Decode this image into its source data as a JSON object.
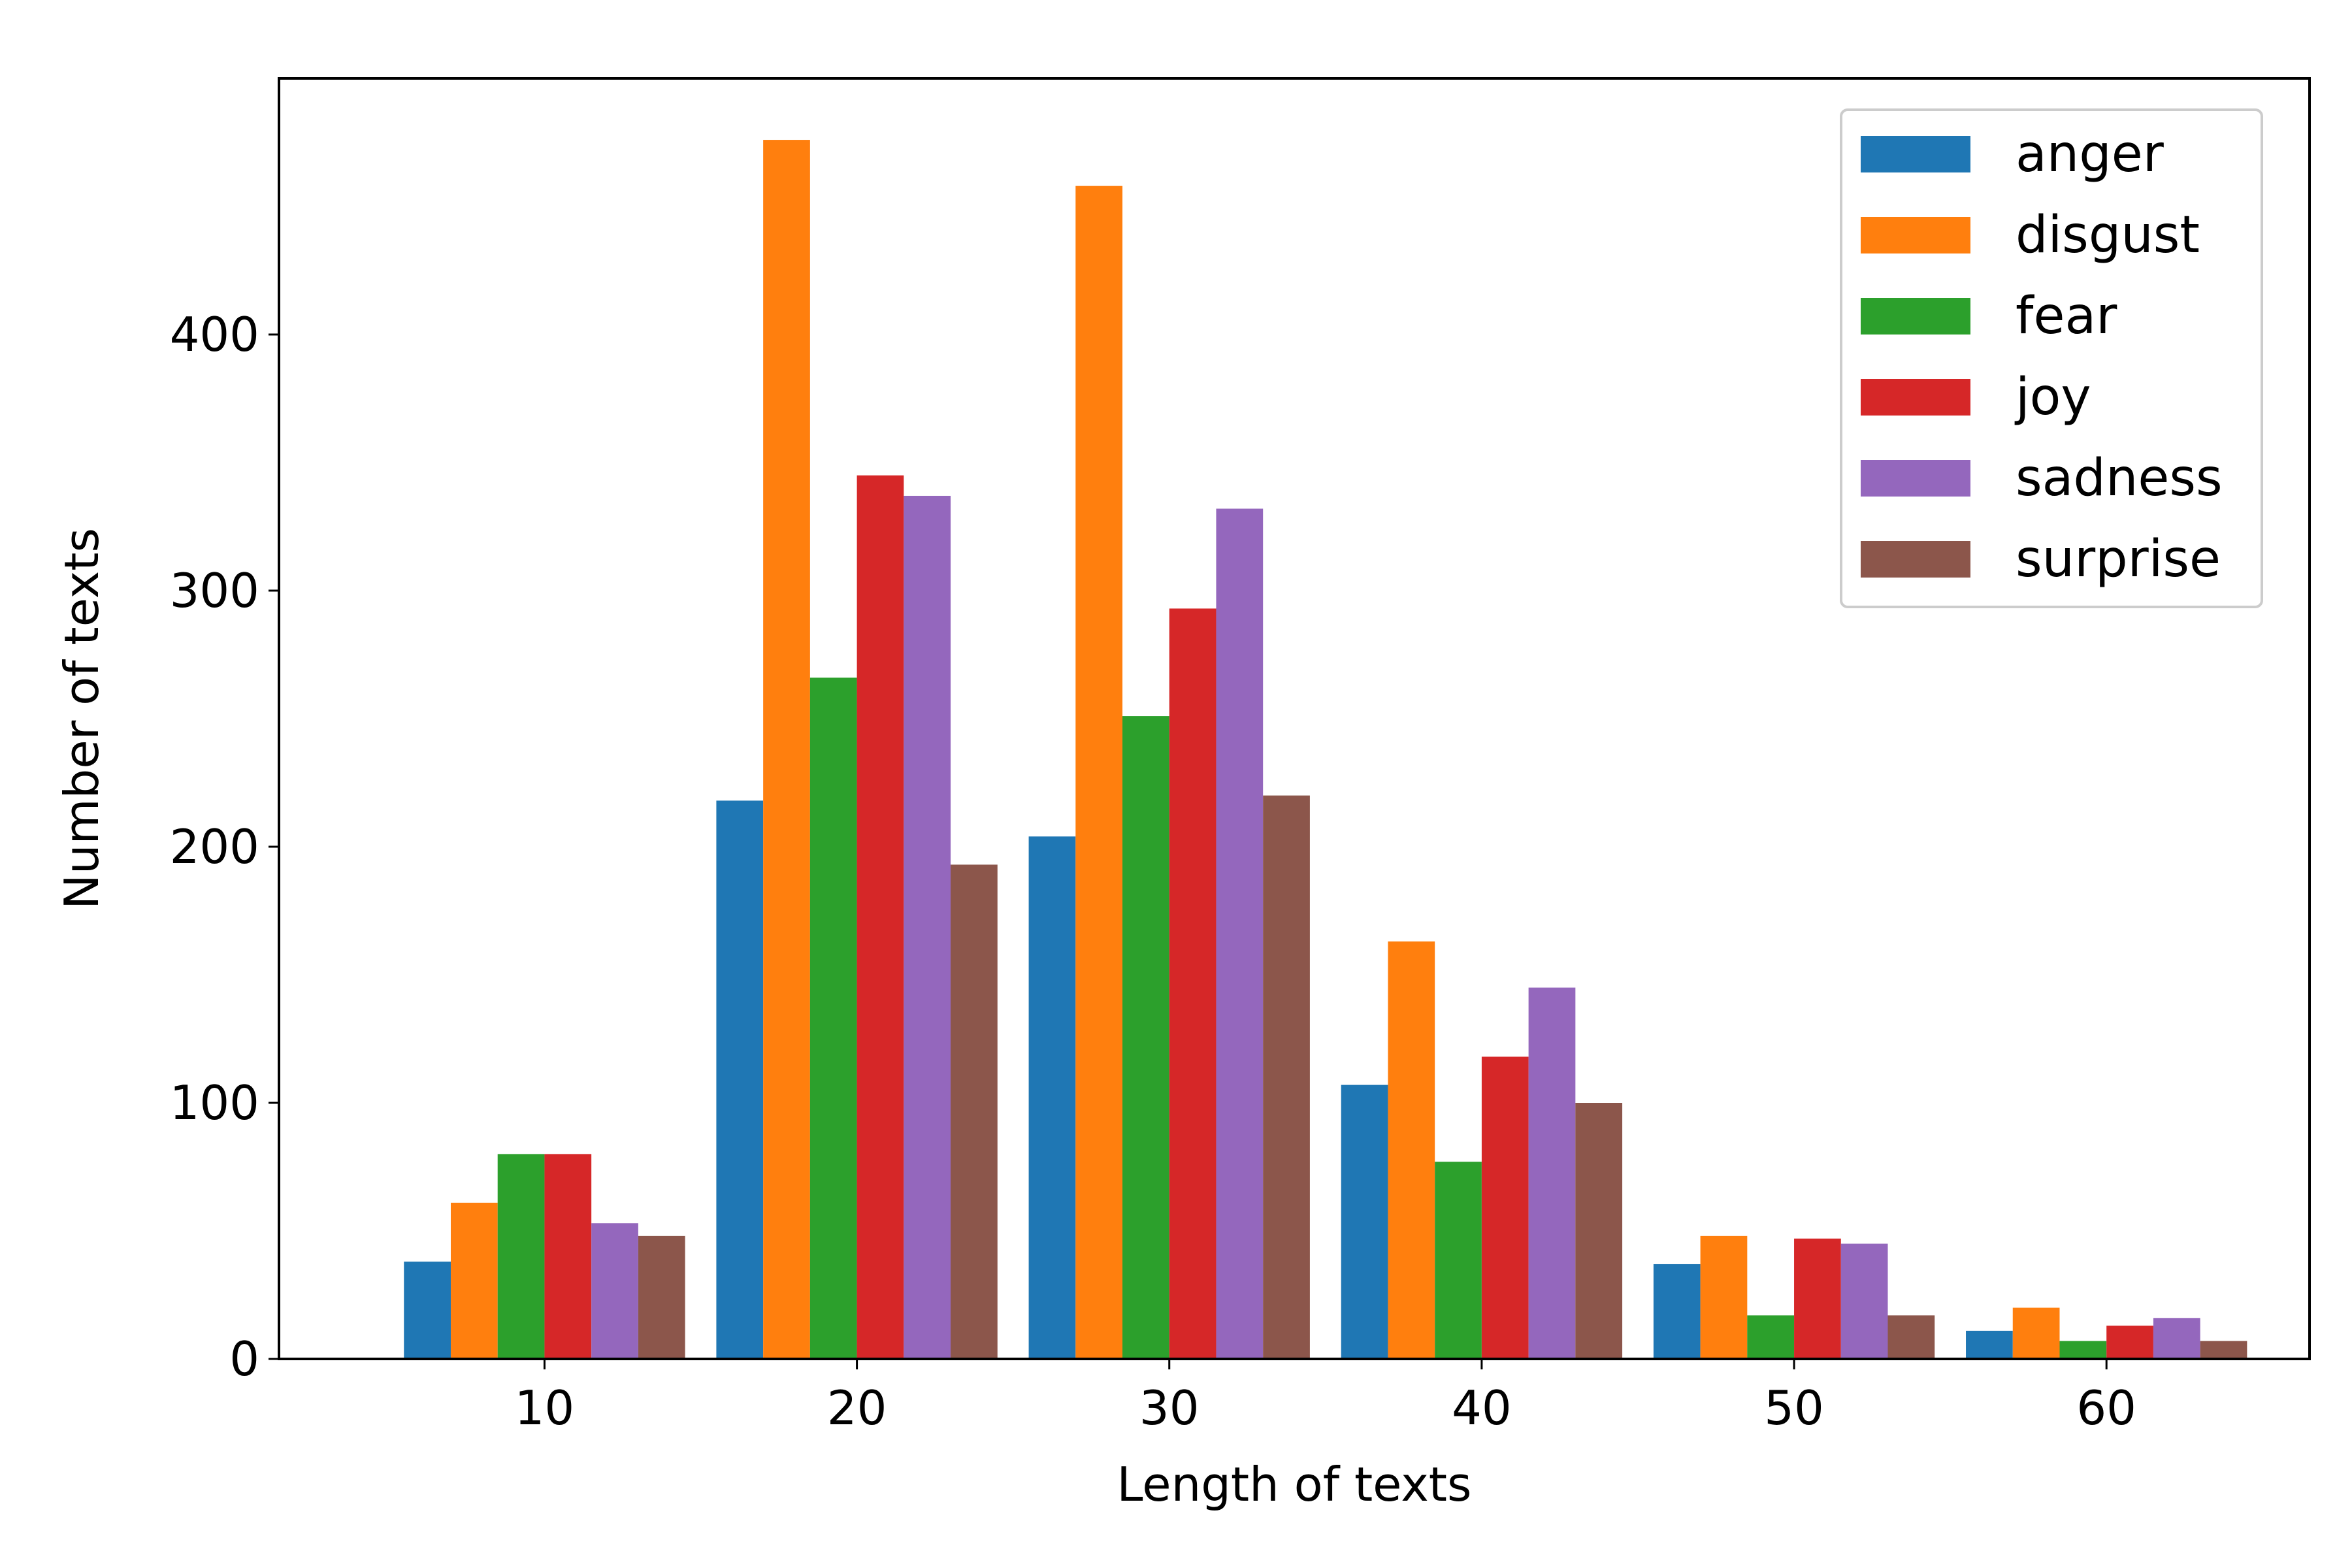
{
  "chart_data": {
    "type": "bar",
    "title": "",
    "xlabel": "Length of texts",
    "ylabel": "Number of texts",
    "categories": [
      10,
      20,
      30,
      40,
      50,
      60
    ],
    "xlim": [
      1.5,
      66.5
    ],
    "ylim": [
      0,
      500
    ],
    "xticks": [
      10,
      20,
      30,
      40,
      50,
      60
    ],
    "yticks": [
      0,
      100,
      200,
      300,
      400
    ],
    "grid": false,
    "legend": {
      "position": "top-right"
    },
    "series": [
      {
        "name": "anger",
        "color": "#1f77b4",
        "values": [
          38,
          218,
          204,
          107,
          37,
          11
        ]
      },
      {
        "name": "disgust",
        "color": "#ff7f0e",
        "values": [
          61,
          476,
          458,
          163,
          48,
          20
        ]
      },
      {
        "name": "fear",
        "color": "#2ca02c",
        "values": [
          80,
          266,
          251,
          77,
          17,
          7
        ]
      },
      {
        "name": "joy",
        "color": "#d62728",
        "values": [
          80,
          345,
          293,
          118,
          47,
          13
        ]
      },
      {
        "name": "sadness",
        "color": "#9467bd",
        "values": [
          53,
          337,
          332,
          145,
          45,
          16
        ]
      },
      {
        "name": "surprise",
        "color": "#8c564b",
        "values": [
          48,
          193,
          220,
          100,
          17,
          7
        ]
      }
    ]
  }
}
